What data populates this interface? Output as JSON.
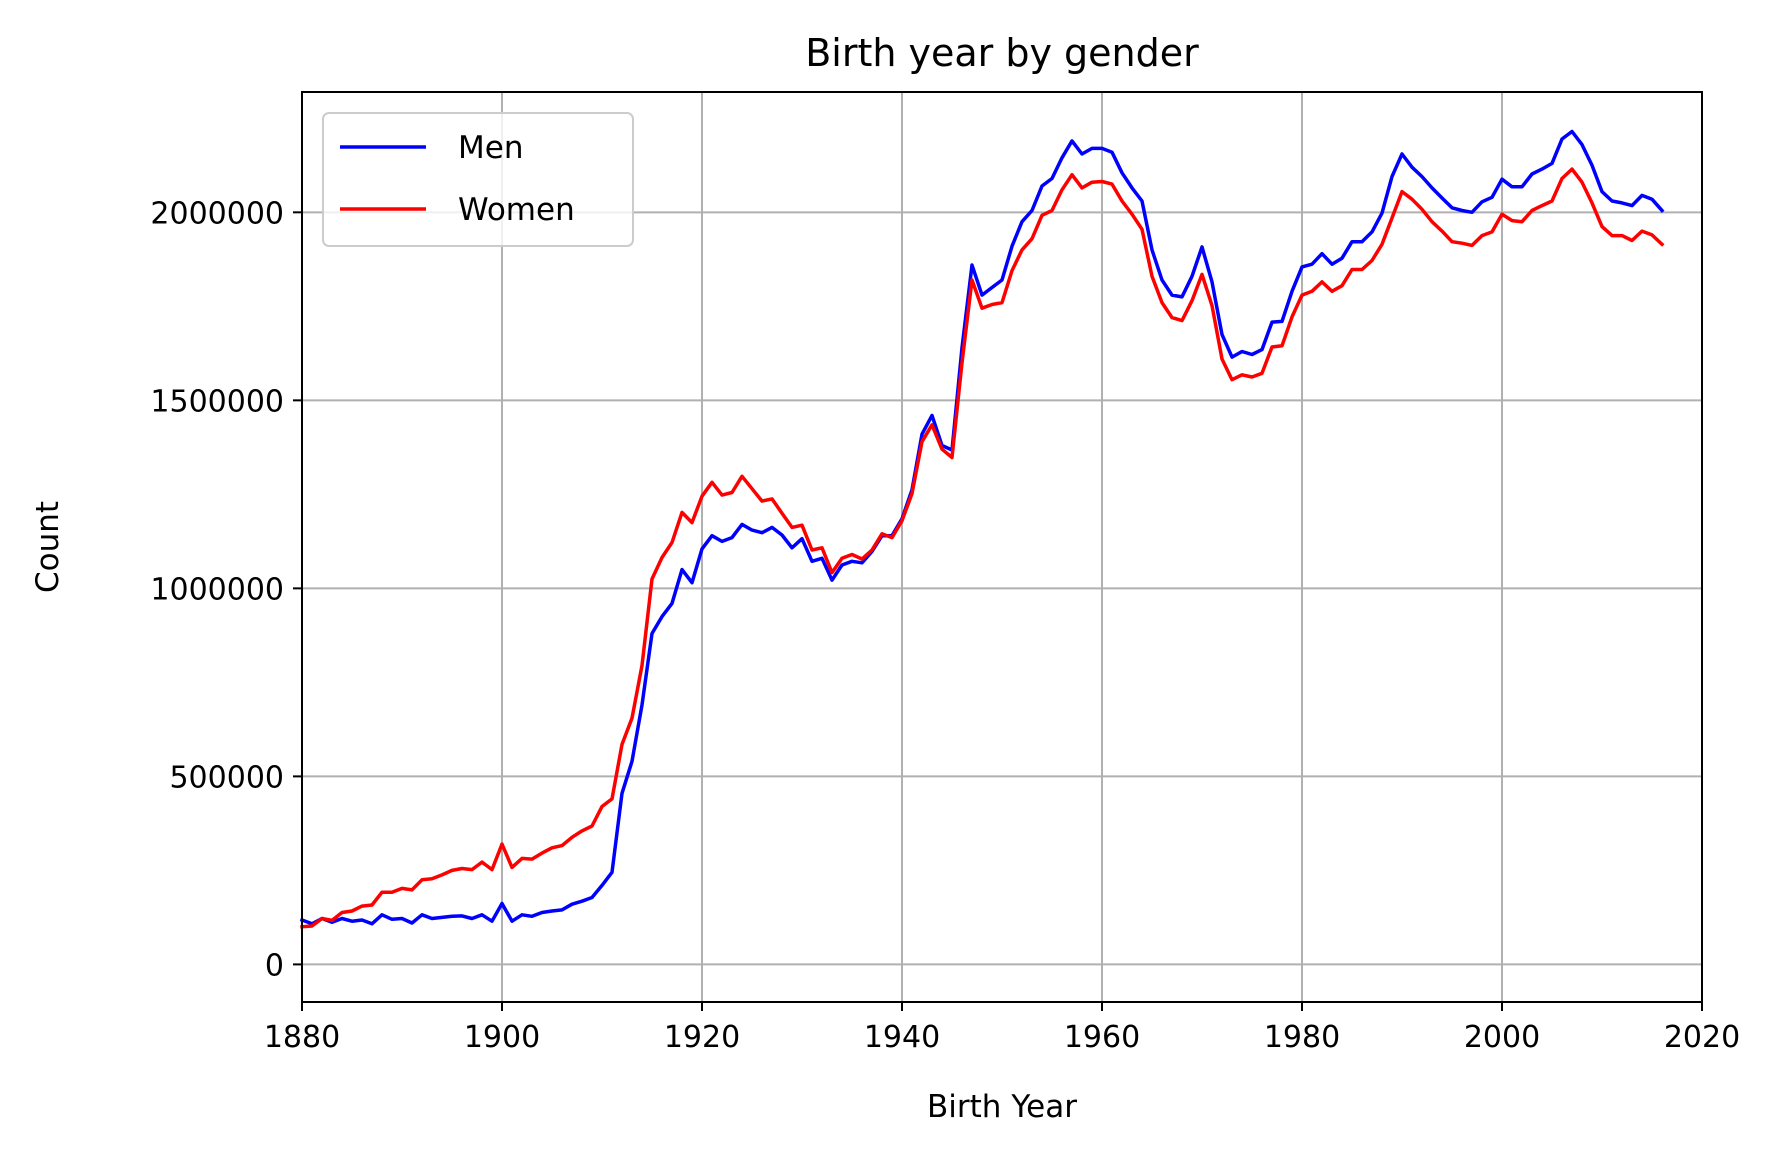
{
  "chart_data": {
    "type": "line",
    "title": "Birth year by gender",
    "xlabel": "Birth Year",
    "ylabel": "Count",
    "xlim": [
      1880,
      2020
    ],
    "ylim": [
      -100000,
      2320000
    ],
    "xticks": [
      1880,
      1900,
      1920,
      1940,
      1960,
      1980,
      2000,
      2020
    ],
    "yticks": [
      0,
      500000,
      1000000,
      1500000,
      2000000
    ],
    "grid": true,
    "legend": "top-left",
    "x_start": 1880,
    "series": [
      {
        "name": "Men",
        "color": "#0000ff",
        "values": [
          118000,
          108000,
          122000,
          112000,
          122000,
          115000,
          118000,
          108000,
          132000,
          120000,
          122000,
          110000,
          132000,
          122000,
          125000,
          128000,
          129000,
          122000,
          132000,
          115000,
          162000,
          115000,
          132000,
          128000,
          138000,
          142000,
          145000,
          160000,
          168000,
          178000,
          210000,
          245000,
          455000,
          540000,
          690000,
          880000,
          925000,
          960000,
          1050000,
          1015000,
          1105000,
          1140000,
          1125000,
          1135000,
          1170000,
          1155000,
          1148000,
          1162000,
          1142000,
          1108000,
          1132000,
          1072000,
          1080000,
          1022000,
          1062000,
          1072000,
          1068000,
          1098000,
          1140000,
          1140000,
          1185000,
          1262000,
          1410000,
          1460000,
          1380000,
          1368000,
          1640000,
          1860000,
          1780000,
          1800000,
          1820000,
          1910000,
          1975000,
          2005000,
          2070000,
          2090000,
          2145000,
          2190000,
          2155000,
          2170000,
          2170000,
          2160000,
          2105000,
          2065000,
          2030000,
          1900000,
          1820000,
          1780000,
          1775000,
          1830000,
          1908000,
          1815000,
          1675000,
          1615000,
          1630000,
          1622000,
          1635000,
          1708000,
          1710000,
          1790000,
          1855000,
          1862000,
          1890000,
          1862000,
          1878000,
          1922000,
          1922000,
          1948000,
          1998000,
          2095000,
          2155000,
          2120000,
          2095000,
          2065000,
          2038000,
          2012000,
          2005000,
          2000000,
          2028000,
          2040000,
          2088000,
          2068000,
          2068000,
          2102000,
          2115000,
          2130000,
          2195000,
          2215000,
          2180000,
          2125000,
          2055000,
          2030000,
          2025000,
          2018000,
          2045000,
          2035000,
          2005000
        ]
      },
      {
        "name": "Women",
        "color": "#ff0000",
        "values": [
          100000,
          102000,
          122000,
          117000,
          138000,
          142000,
          155000,
          158000,
          192000,
          192000,
          202000,
          198000,
          225000,
          228000,
          238000,
          250000,
          255000,
          252000,
          272000,
          252000,
          320000,
          258000,
          282000,
          280000,
          296000,
          310000,
          316000,
          338000,
          355000,
          368000,
          420000,
          440000,
          585000,
          655000,
          795000,
          1025000,
          1082000,
          1122000,
          1202000,
          1175000,
          1245000,
          1282000,
          1248000,
          1255000,
          1298000,
          1265000,
          1232000,
          1238000,
          1200000,
          1162000,
          1168000,
          1102000,
          1108000,
          1042000,
          1080000,
          1090000,
          1078000,
          1102000,
          1145000,
          1135000,
          1180000,
          1252000,
          1390000,
          1435000,
          1370000,
          1348000,
          1600000,
          1820000,
          1745000,
          1755000,
          1760000,
          1845000,
          1900000,
          1930000,
          1992000,
          2005000,
          2060000,
          2100000,
          2065000,
          2080000,
          2082000,
          2075000,
          2030000,
          1995000,
          1955000,
          1830000,
          1760000,
          1720000,
          1712000,
          1765000,
          1835000,
          1752000,
          1610000,
          1555000,
          1568000,
          1562000,
          1572000,
          1642000,
          1645000,
          1722000,
          1780000,
          1790000,
          1815000,
          1790000,
          1805000,
          1848000,
          1848000,
          1872000,
          1915000,
          1985000,
          2055000,
          2035000,
          2008000,
          1975000,
          1950000,
          1922000,
          1918000,
          1912000,
          1938000,
          1948000,
          1995000,
          1978000,
          1975000,
          2005000,
          2018000,
          2030000,
          2090000,
          2115000,
          2080000,
          2025000,
          1962000,
          1938000,
          1938000,
          1925000,
          1950000,
          1940000,
          1915000
        ]
      }
    ]
  }
}
